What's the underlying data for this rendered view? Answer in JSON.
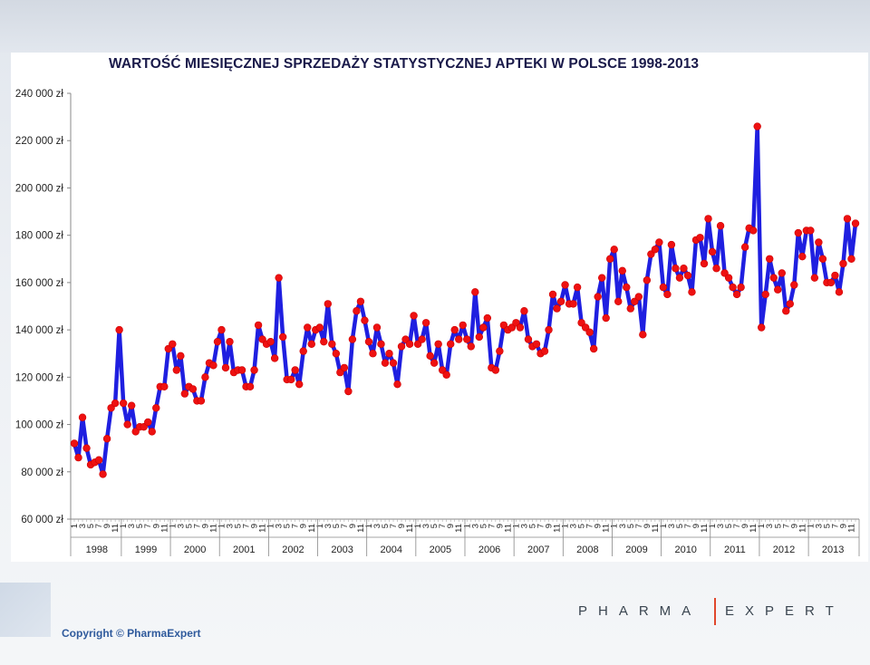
{
  "chart_data": {
    "type": "line",
    "title": "WARTOŚĆ MIESIĘCZNEJ SPRZEDAŻY STATYSTYCZNEJ APTEKI W POLSCE 1998-2013",
    "xlabel": "",
    "ylabel": "",
    "ylim": [
      60000,
      240000
    ],
    "y_ticks": [
      60000,
      80000,
      100000,
      120000,
      140000,
      160000,
      180000,
      200000,
      220000,
      240000
    ],
    "y_tick_labels": [
      "60 000 zł",
      "80 000 zł",
      "100 000 zł",
      "120 000 zł",
      "140 000 zł",
      "160 000 zł",
      "180 000 zł",
      "200 000 zł",
      "220 000 zł",
      "240 000 zł"
    ],
    "grid": false,
    "legend": "none",
    "years": [
      "1998",
      "1999",
      "2000",
      "2001",
      "2002",
      "2003",
      "2004",
      "2005",
      "2006",
      "2007",
      "2008",
      "2009",
      "2010",
      "2011",
      "2012",
      "2013"
    ],
    "month_tick_labels": [
      "1",
      "3",
      "5",
      "7",
      "9",
      "11"
    ],
    "line_color": "#1f1fe0",
    "marker_color": "#ee1111",
    "values": [
      92000,
      86000,
      103000,
      90000,
      83000,
      84000,
      85000,
      79000,
      94000,
      107000,
      109000,
      140000,
      109000,
      100000,
      108000,
      97000,
      99000,
      99000,
      101000,
      97000,
      107000,
      116000,
      116000,
      132000,
      134000,
      123000,
      129000,
      113000,
      116000,
      115000,
      110000,
      110000,
      120000,
      126000,
      125000,
      135000,
      140000,
      124000,
      135000,
      122000,
      123000,
      123000,
      116000,
      116000,
      123000,
      142000,
      136000,
      134000,
      135000,
      128000,
      162000,
      137000,
      119000,
      119000,
      123000,
      117000,
      131000,
      141000,
      134000,
      140000,
      141000,
      135000,
      151000,
      134000,
      130000,
      122000,
      124000,
      114000,
      136000,
      148000,
      152000,
      144000,
      135000,
      130000,
      141000,
      134000,
      126000,
      130000,
      126000,
      117000,
      133000,
      136000,
      134000,
      146000,
      134000,
      136000,
      143000,
      129000,
      126000,
      134000,
      123000,
      121000,
      134000,
      140000,
      136000,
      142000,
      136000,
      133000,
      156000,
      137000,
      141000,
      145000,
      124000,
      123000,
      131000,
      142000,
      140000,
      141000,
      143000,
      141000,
      148000,
      136000,
      133000,
      134000,
      130000,
      131000,
      140000,
      155000,
      149000,
      152000,
      159000,
      151000,
      151000,
      158000,
      143000,
      141000,
      139000,
      132000,
      154000,
      162000,
      145000,
      170000,
      174000,
      152000,
      165000,
      158000,
      149000,
      152000,
      154000,
      138000,
      161000,
      172000,
      174000,
      177000,
      158000,
      155000,
      176000,
      166000,
      162000,
      166000,
      163000,
      156000,
      178000,
      179000,
      168000,
      187000,
      173000,
      166000,
      184000,
      164000,
      162000,
      158000,
      155000,
      158000,
      175000,
      183000,
      182000,
      226000,
      141000,
      155000,
      170000,
      162000,
      157000,
      164000,
      148000,
      151000,
      159000,
      181000,
      171000,
      182000,
      182000,
      162000,
      177000,
      170000,
      160000,
      160000,
      163000,
      156000,
      168000,
      187000,
      170000,
      185000
    ]
  },
  "footer": {
    "copyright": "Copyright © PharmaExpert",
    "brand_left": "PHARMA",
    "brand_right": "EXPERT"
  }
}
